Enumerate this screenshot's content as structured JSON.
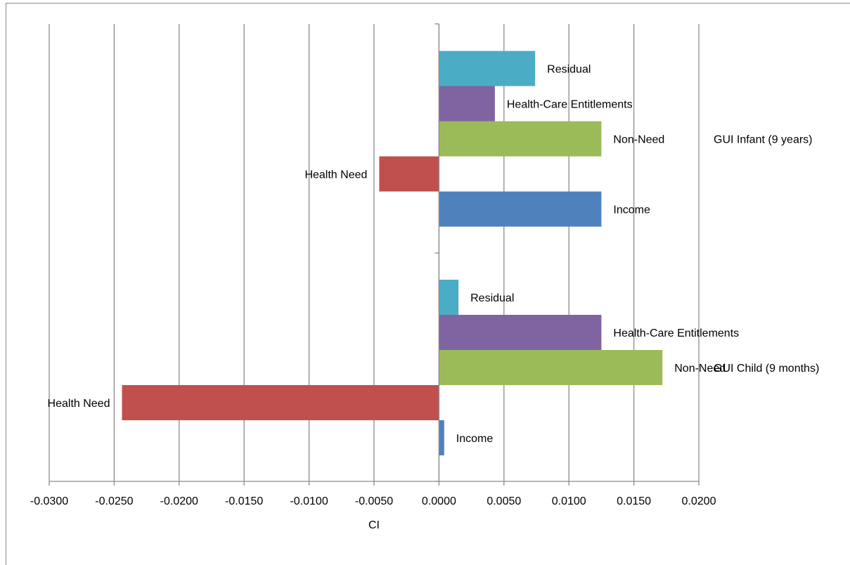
{
  "figure_heading": "",
  "chart_data": {
    "type": "bar",
    "orientation": "horizontal",
    "title": "",
    "xlabel": "CI",
    "ylabel": "",
    "xlim": [
      -0.03,
      0.02
    ],
    "x_ticks": [
      "-0.0300",
      "-0.0250",
      "-0.0200",
      "-0.0150",
      "-0.0100",
      "-0.0050",
      "0.0000",
      "0.0050",
      "0.0100",
      "0.0150",
      "0.0200"
    ],
    "grid": true,
    "legend": "none",
    "groups": [
      {
        "name": "GUI Child (9 months)",
        "bars": [
          {
            "label": "Income",
            "value": 0.0004,
            "color": "#4f81bd"
          },
          {
            "label": "Health Need",
            "value": -0.0244,
            "color": "#c0504d"
          },
          {
            "label": "Non-Need",
            "value": 0.0172,
            "color": "#9bbb59"
          },
          {
            "label": "Health-Care Entitlements",
            "value": 0.0125,
            "color": "#8064a2"
          },
          {
            "label": "Residual",
            "value": 0.0015,
            "color": "#4bacc6"
          }
        ]
      },
      {
        "name": "GUI Infant (9 years)",
        "bars": [
          {
            "label": "Income",
            "value": 0.0125,
            "color": "#4f81bd"
          },
          {
            "label": "Health Need",
            "value": -0.0046,
            "color": "#c0504d"
          },
          {
            "label": "Non-Need",
            "value": 0.0125,
            "color": "#9bbb59"
          },
          {
            "label": "Health-Care Entitlements",
            "value": 0.0043,
            "color": "#8064a2"
          },
          {
            "label": "Residual",
            "value": 0.0074,
            "color": "#4bacc6"
          }
        ]
      }
    ]
  }
}
